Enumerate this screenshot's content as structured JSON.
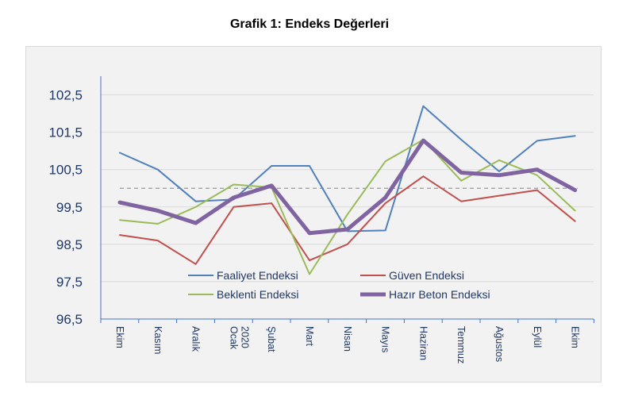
{
  "chart_data": {
    "type": "line",
    "title": "Grafik 1: Endeks Değerleri",
    "xlabel": "",
    "ylabel": "",
    "ylim": [
      96.5,
      103.0
    ],
    "yticks": [
      "96,5",
      "97,5",
      "98,5",
      "99,5",
      "100,5",
      "101,5",
      "102,5"
    ],
    "ytick_values": [
      96.5,
      97.5,
      98.5,
      99.5,
      100.5,
      101.5,
      102.5
    ],
    "categories": [
      "Ekim",
      "Kasım",
      "Aralık",
      "Ocak",
      "Şubat",
      "Mart",
      "Nisan",
      "Mayıs",
      "Haziran",
      "Temmuz",
      "Ağustos",
      "Eylül",
      "Ekim"
    ],
    "year_marker": {
      "label": "2020",
      "category_index": 3
    },
    "reference_line": 100,
    "grid": "horizontal",
    "legend_position": "bottom-center",
    "series": [
      {
        "name": "Faaliyet Endeksi",
        "color": "#4f81bd",
        "width": 2,
        "values": [
          100.95,
          100.5,
          99.65,
          99.7,
          100.6,
          100.6,
          98.85,
          98.87,
          102.2,
          101.3,
          100.45,
          101.27,
          101.4
        ]
      },
      {
        "name": "Güven Endeksi",
        "color": "#c0504d",
        "width": 2,
        "values": [
          98.75,
          98.6,
          97.97,
          99.5,
          99.6,
          98.07,
          98.5,
          99.6,
          100.32,
          99.65,
          99.8,
          99.95,
          99.12
        ]
      },
      {
        "name": "Beklenti Endeksi",
        "color": "#9bbb59",
        "width": 2,
        "values": [
          99.15,
          99.05,
          99.5,
          100.1,
          100.02,
          97.7,
          99.3,
          100.72,
          101.3,
          100.2,
          100.75,
          100.35,
          99.4
        ]
      },
      {
        "name": "Hazır Beton Endeksi",
        "color": "#8064a2",
        "width": 5,
        "values": [
          99.62,
          99.4,
          99.07,
          99.75,
          100.07,
          98.8,
          98.9,
          99.75,
          101.28,
          100.42,
          100.35,
          100.5,
          99.95
        ]
      }
    ]
  }
}
